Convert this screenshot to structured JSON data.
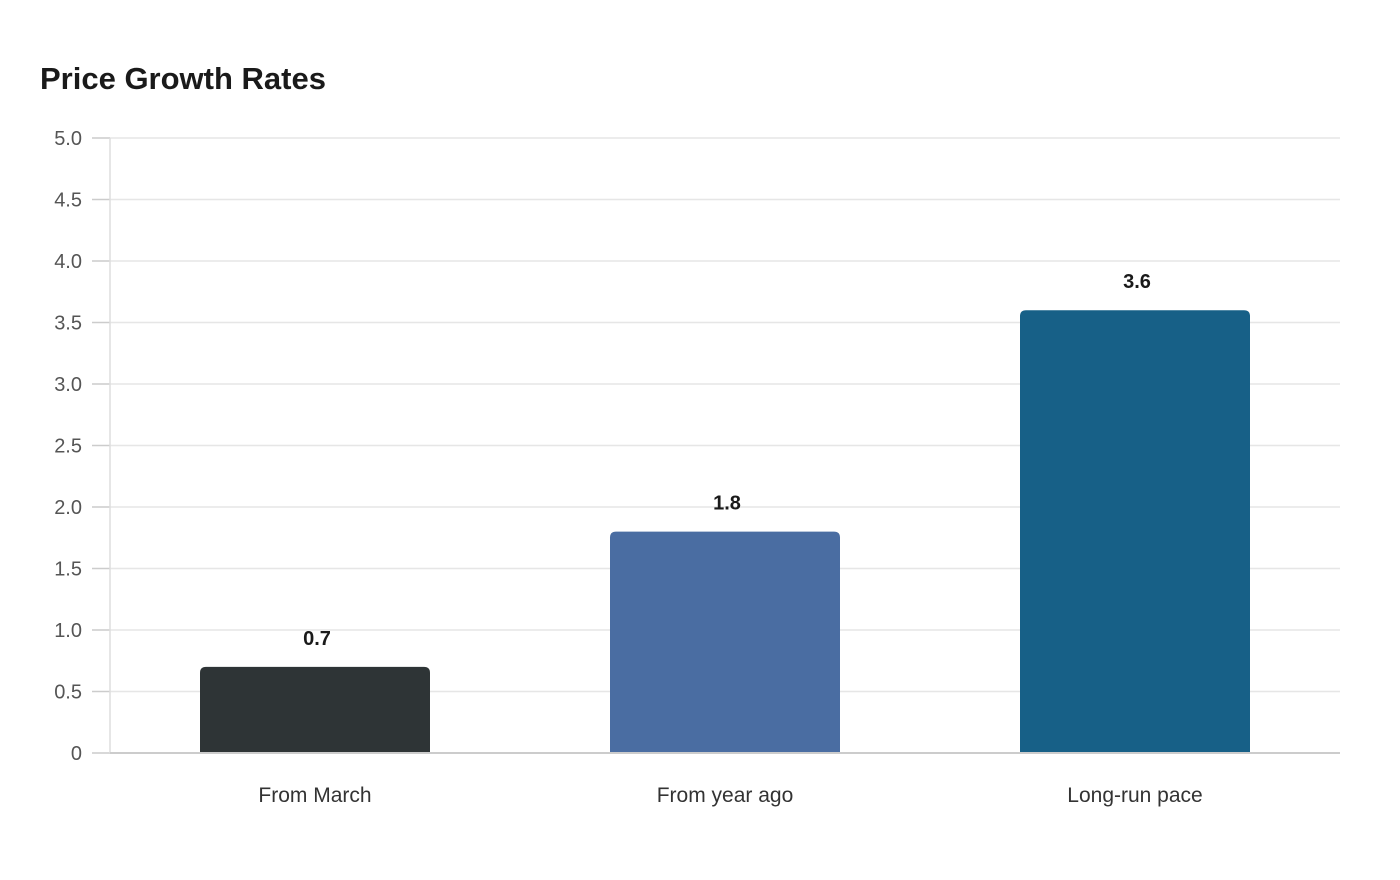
{
  "chart_data": {
    "type": "bar",
    "title": "Price Growth Rates",
    "xlabel": "",
    "ylabel": "",
    "categories": [
      "From March",
      "From year ago",
      "Long-run pace"
    ],
    "values": [
      0.7,
      1.8,
      3.6
    ],
    "value_labels": [
      "0.7",
      "1.8",
      "3.6"
    ],
    "colors": [
      "#2e3436",
      "#4a6da2",
      "#176087"
    ],
    "ylim": [
      0,
      5
    ],
    "yticks": [
      0,
      0.5,
      1.0,
      1.5,
      2.0,
      2.5,
      3.0,
      3.5,
      4.0,
      4.5,
      5.0
    ],
    "ytick_labels": [
      "0",
      "0.5",
      "1.0",
      "1.5",
      "2.0",
      "2.5",
      "3.0",
      "3.5",
      "4.0",
      "4.5",
      "5.0"
    ],
    "grid": true,
    "legend": "none"
  }
}
